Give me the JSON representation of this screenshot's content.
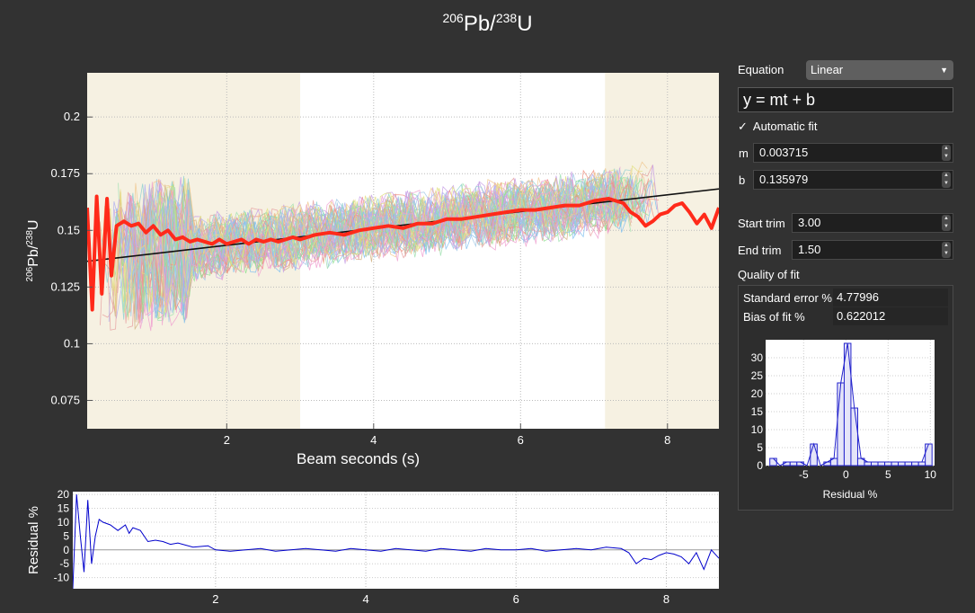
{
  "title": {
    "iso1": "206",
    "el1": "Pb",
    "iso2": "238",
    "el2": "U"
  },
  "controls": {
    "equation_label": "Equation",
    "equation_value": "Linear",
    "equation_formula": "y = mt + b",
    "auto_fit_checked": true,
    "auto_fit_label": "Automatic fit",
    "m_label": "m",
    "m_value": "0.003715",
    "b_label": "b",
    "b_value": "0.135979",
    "start_trim_label": "Start trim",
    "start_trim_value": "3.00",
    "end_trim_label": "End trim",
    "end_trim_value": "1.50",
    "quality_label": "Quality of fit",
    "std_err_label": "Standard error %",
    "std_err_value": "4.77996",
    "bias_label": "Bias of fit %",
    "bias_value": "0.622012"
  },
  "chart_data": [
    {
      "type": "line",
      "xlabel": "Beam seconds (s)",
      "ylabel": {
        "iso1": "206",
        "el1": "Pb/",
        "iso2": "238",
        "el2": "U"
      },
      "xlim": [
        0.1,
        8.7
      ],
      "ylim": [
        0.0625,
        0.2195
      ],
      "xticks": [
        2,
        4,
        6,
        8
      ],
      "yticks": [
        0.075,
        0.1,
        0.125,
        0.15,
        0.175,
        0.2
      ],
      "ytick_labels": [
        "0.075",
        "0.1",
        "0.125",
        "0.15",
        "0.175",
        "0.2"
      ],
      "trim_regions": [
        [
          0.1,
          3.0
        ],
        [
          7.15,
          8.7
        ]
      ],
      "grid": true,
      "fit_line": {
        "m": 0.003715,
        "b": 0.135979,
        "color": "#111111"
      },
      "mean_series": {
        "color": "#ff2a1a",
        "x": [
          0.1,
          0.17,
          0.23,
          0.3,
          0.37,
          0.43,
          0.5,
          0.6,
          0.7,
          0.8,
          0.9,
          1.0,
          1.1,
          1.2,
          1.3,
          1.4,
          1.5,
          1.6,
          1.7,
          1.8,
          1.9,
          2.0,
          2.1,
          2.2,
          2.3,
          2.4,
          2.5,
          2.6,
          2.7,
          2.8,
          2.9,
          3.0,
          3.2,
          3.4,
          3.6,
          3.8,
          4.0,
          4.2,
          4.4,
          4.6,
          4.8,
          5.0,
          5.2,
          5.4,
          5.6,
          5.8,
          6.0,
          6.2,
          6.4,
          6.6,
          6.8,
          7.0,
          7.2,
          7.4,
          7.5,
          7.6,
          7.7,
          7.8,
          7.9,
          8.0,
          8.1,
          8.2,
          8.3,
          8.4,
          8.5,
          8.6,
          8.7
        ],
        "y": [
          0.16,
          0.115,
          0.165,
          0.122,
          0.164,
          0.13,
          0.152,
          0.154,
          0.152,
          0.153,
          0.149,
          0.152,
          0.148,
          0.15,
          0.146,
          0.147,
          0.145,
          0.146,
          0.145,
          0.144,
          0.146,
          0.144,
          0.145,
          0.146,
          0.144,
          0.146,
          0.145,
          0.146,
          0.145,
          0.146,
          0.147,
          0.146,
          0.148,
          0.149,
          0.148,
          0.15,
          0.151,
          0.152,
          0.151,
          0.153,
          0.153,
          0.155,
          0.155,
          0.156,
          0.157,
          0.158,
          0.159,
          0.159,
          0.16,
          0.161,
          0.161,
          0.163,
          0.164,
          0.162,
          0.158,
          0.156,
          0.152,
          0.154,
          0.157,
          0.158,
          0.161,
          0.162,
          0.158,
          0.153,
          0.157,
          0.151,
          0.16
        ]
      }
    },
    {
      "type": "line",
      "ylabel": "Residual %",
      "xlim": [
        0.1,
        8.7
      ],
      "ylim": [
        -14,
        21
      ],
      "xticks": [
        2,
        4,
        6,
        8
      ],
      "yticks": [
        -10,
        -5,
        0,
        5,
        10,
        15,
        20
      ],
      "grid": true,
      "series": [
        {
          "color": "#0000cc",
          "x": [
            0.1,
            0.15,
            0.2,
            0.25,
            0.3,
            0.35,
            0.4,
            0.45,
            0.5,
            0.6,
            0.7,
            0.8,
            0.85,
            0.9,
            1.0,
            1.1,
            1.2,
            1.3,
            1.4,
            1.5,
            1.7,
            1.9,
            2.0,
            2.2,
            2.4,
            2.6,
            2.8,
            3.0,
            3.2,
            3.4,
            3.6,
            3.8,
            4.0,
            4.2,
            4.4,
            4.6,
            4.8,
            5.0,
            5.2,
            5.4,
            5.6,
            5.8,
            6.0,
            6.2,
            6.4,
            6.6,
            6.8,
            7.0,
            7.2,
            7.4,
            7.5,
            7.6,
            7.7,
            7.8,
            7.9,
            8.0,
            8.1,
            8.2,
            8.3,
            8.4,
            8.5,
            8.6,
            8.7
          ],
          "y": [
            -14,
            20,
            5,
            -8,
            18,
            -5,
            5,
            11,
            10,
            9,
            7,
            9,
            6,
            8,
            7,
            3,
            3.5,
            3,
            2,
            2.5,
            1,
            1.5,
            0,
            -0.5,
            0,
            0.5,
            -0.5,
            0,
            0.5,
            0,
            -0.5,
            0.5,
            0,
            -0.5,
            0.5,
            0,
            -0.5,
            0.5,
            0,
            -0.5,
            0.5,
            0,
            0,
            0.5,
            -0.5,
            0,
            0.5,
            0,
            1,
            0.5,
            -1,
            -5,
            -3,
            -3.5,
            -2,
            -1,
            -1.5,
            -2.5,
            -5,
            -1,
            -7,
            0,
            -3
          ]
        }
      ]
    },
    {
      "type": "bar",
      "xlabel": "Residual %",
      "xlim": [
        -9.5,
        10.5
      ],
      "ylim": [
        0,
        35
      ],
      "xticks": [
        -5,
        0,
        5,
        10
      ],
      "yticks": [
        0,
        5,
        10,
        15,
        20,
        25,
        30
      ],
      "grid": true,
      "bin_width": 0.8,
      "bin_centers": [
        -8.6,
        -7.8,
        -7.0,
        -6.2,
        -5.4,
        -4.6,
        -3.8,
        -3.0,
        -2.2,
        -1.4,
        -0.6,
        0.2,
        1.0,
        1.8,
        2.6,
        3.4,
        4.2,
        5.0,
        5.8,
        6.6,
        7.4,
        8.2,
        9.0,
        9.8
      ],
      "values": [
        2,
        0,
        1,
        1,
        1,
        0,
        6,
        0,
        1,
        2,
        23,
        34,
        16,
        2,
        1,
        1,
        1,
        1,
        1,
        1,
        1,
        1,
        1,
        6
      ],
      "density_line": true,
      "color": "#2222cc"
    }
  ]
}
